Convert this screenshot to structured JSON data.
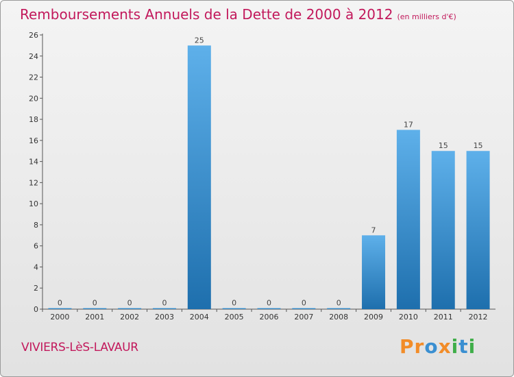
{
  "title": "Remboursements Annuels de la Dette de 2000 à 2012",
  "title_unit": "(en milliers d'€)",
  "commune": "VIVIERS-LèS-LAVAUR",
  "logo": {
    "text": "Proxiti",
    "letters": [
      {
        "ch": "P",
        "color": "#f28c28"
      },
      {
        "ch": "r",
        "color": "#f28c28"
      },
      {
        "ch": "o",
        "color": "#3a8fd1"
      },
      {
        "ch": "x",
        "color": "#f28c28"
      },
      {
        "ch": "i",
        "color": "#3fae49"
      },
      {
        "ch": "t",
        "color": "#3a8fd1"
      },
      {
        "ch": "i",
        "color": "#3fae49"
      }
    ]
  },
  "colors": {
    "accent": "#c2185b",
    "bar_top": "#5eb0ea",
    "bar_bottom": "#1e6fad"
  },
  "chart_data": {
    "type": "bar",
    "categories": [
      "2000",
      "2001",
      "2002",
      "2003",
      "2004",
      "2005",
      "2006",
      "2007",
      "2008",
      "2009",
      "2010",
      "2011",
      "2012"
    ],
    "values": [
      0,
      0,
      0,
      0,
      25,
      0,
      0,
      0,
      0,
      7,
      17,
      15,
      15
    ],
    "ylim": [
      0,
      26
    ],
    "yticks": [
      0,
      2,
      4,
      6,
      8,
      10,
      12,
      14,
      16,
      18,
      20,
      22,
      24,
      26
    ],
    "grid": false,
    "title": "Remboursements Annuels de la Dette de 2000 à 2012",
    "xlabel": "",
    "ylabel": ""
  }
}
